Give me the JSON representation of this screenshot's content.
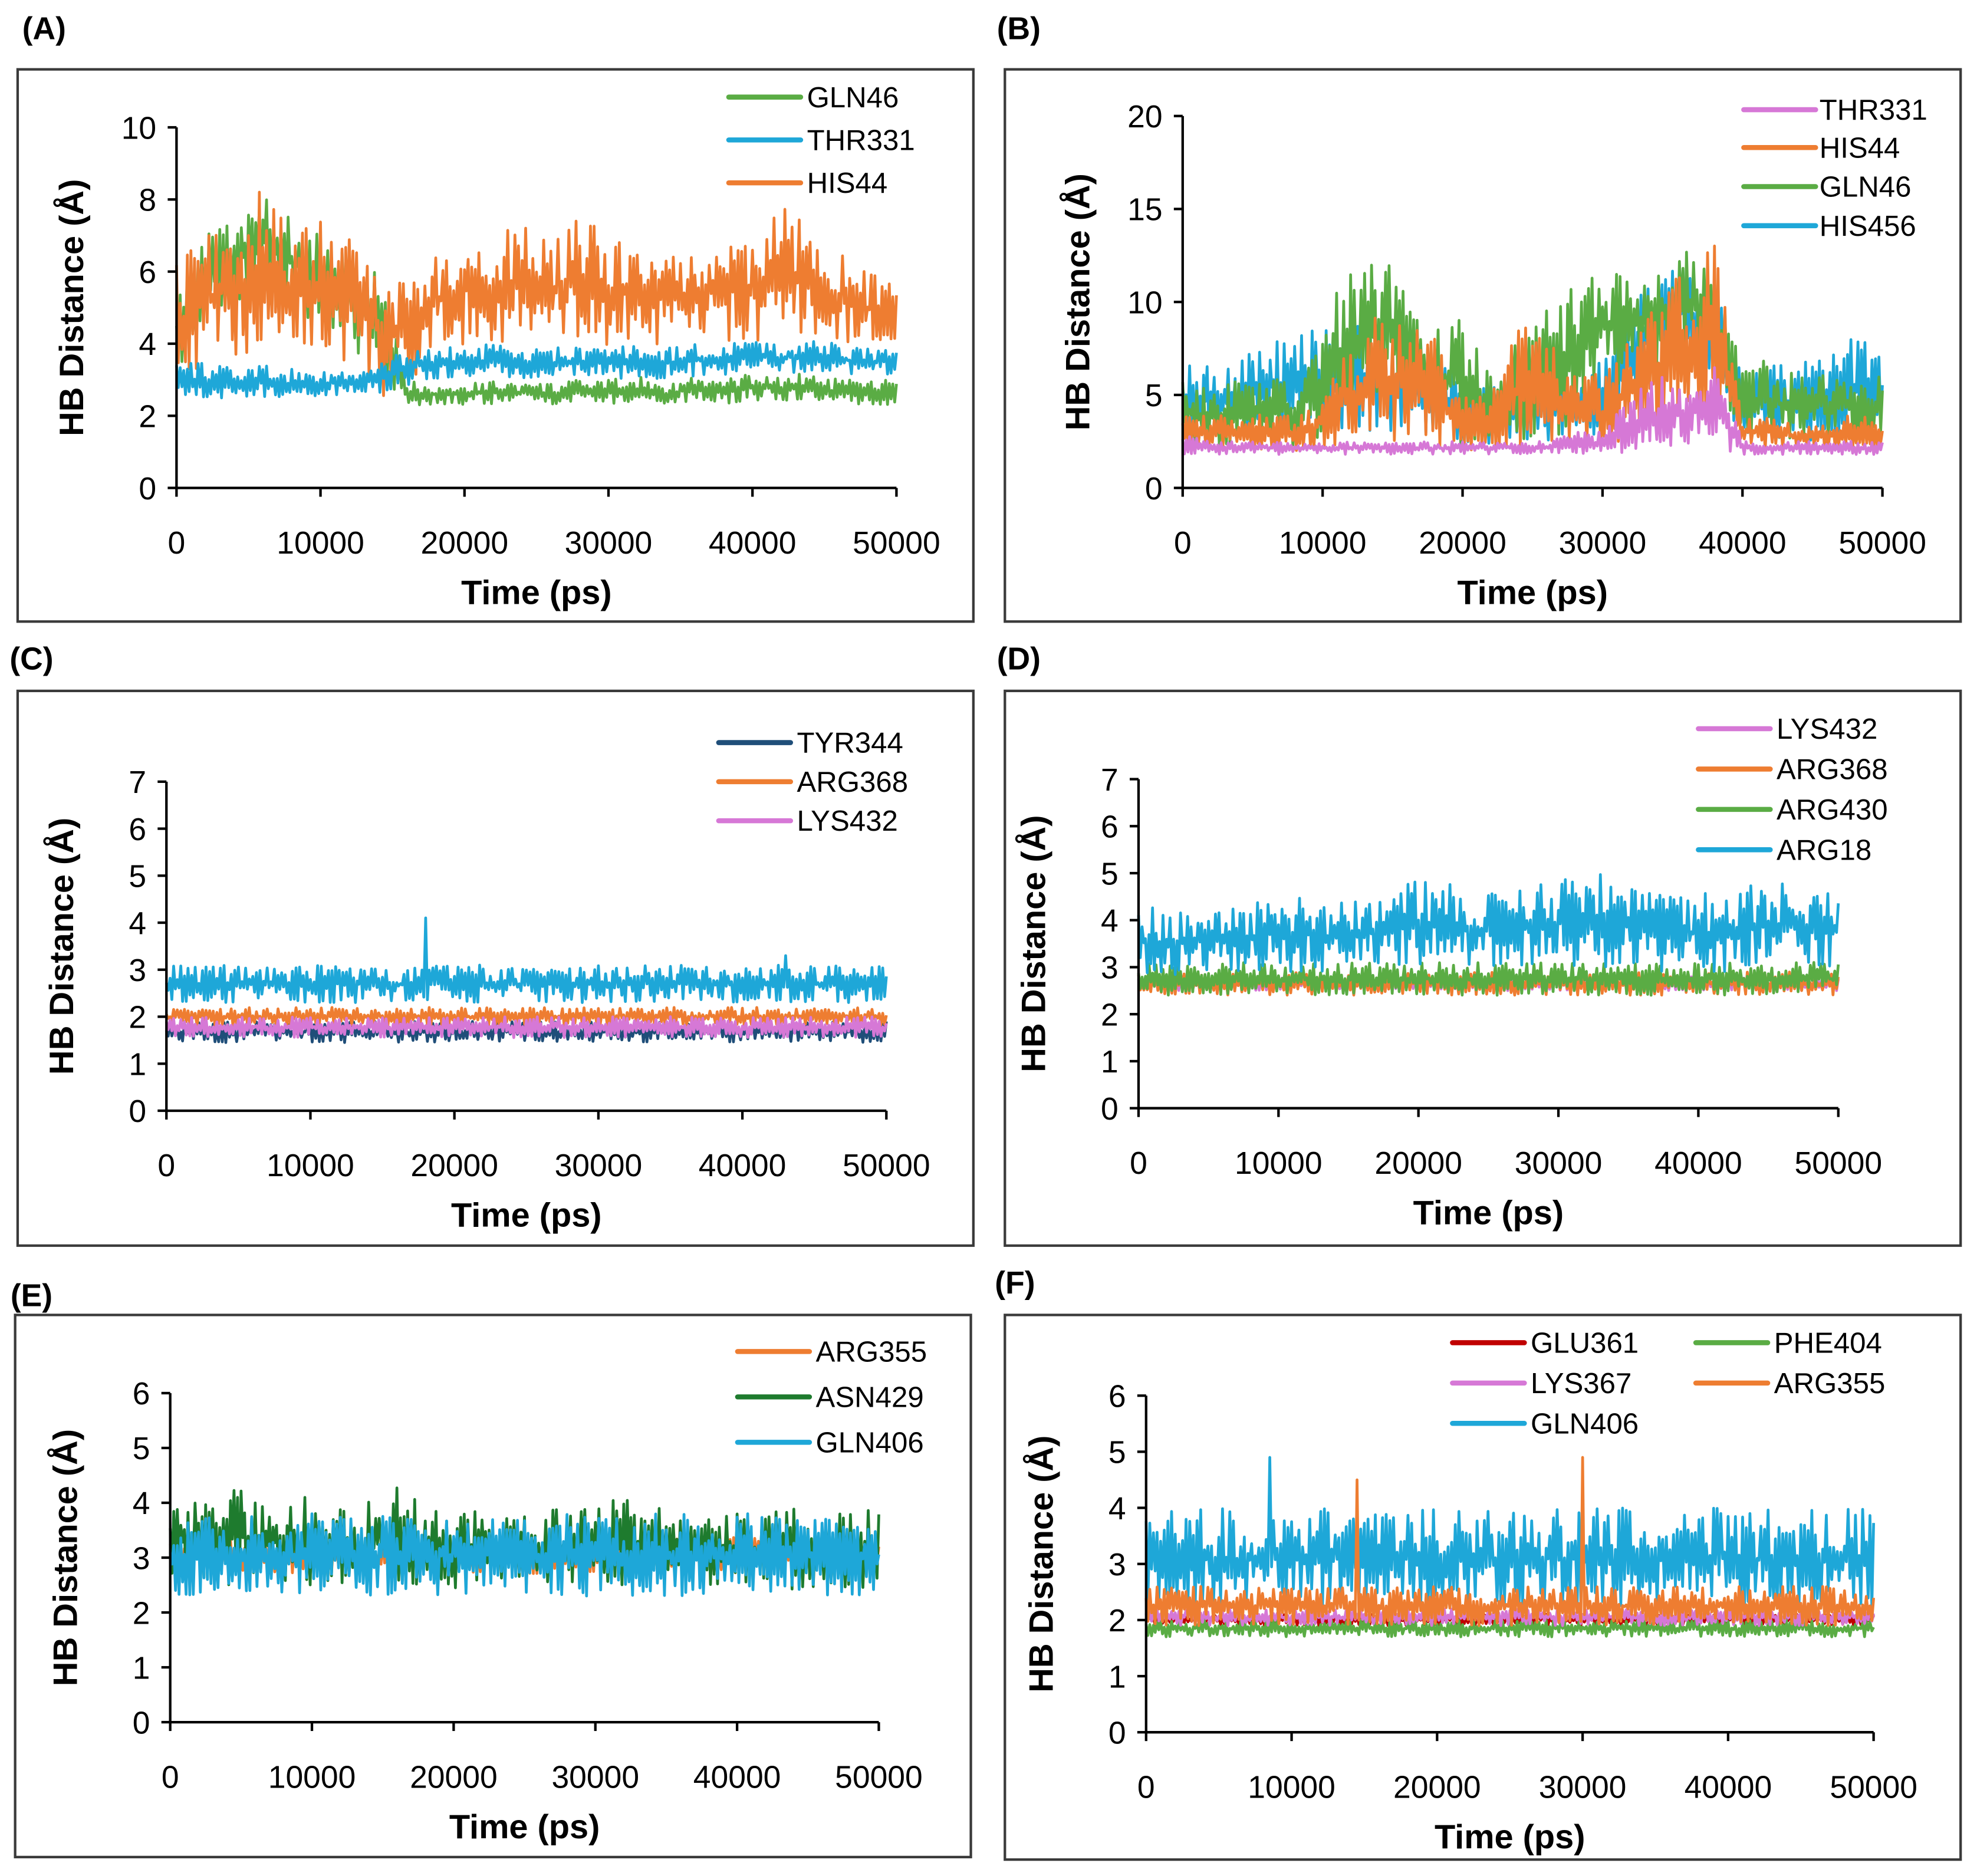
{
  "chart_data": [
    {
      "panel": "(A)",
      "type": "line",
      "xlabel": "Time (ps)",
      "ylabel": "HB Distance (Å)",
      "xlim": [
        0,
        50000
      ],
      "ylim": [
        0,
        10
      ],
      "xticks": [
        0,
        10000,
        20000,
        30000,
        40000,
        50000
      ],
      "yticks": [
        0,
        2,
        4,
        6,
        8,
        10
      ],
      "x_step": 2000,
      "legend": [
        "GLN46",
        "THR331",
        "HIS44"
      ],
      "series": [
        {
          "name": "GLN46",
          "color": "#5aac44",
          "lo": [
            2.3,
            4.5,
            5,
            5.5,
            5,
            4.5,
            4,
            3,
            2.3,
            2.3,
            2.3,
            2.3,
            2.4,
            2.3,
            2.4,
            2.3,
            2.4,
            2.3,
            2.4,
            2.3,
            2.4,
            2.4,
            2.4,
            2.3,
            2.3,
            2.2
          ],
          "hi": [
            6,
            7,
            7.5,
            8.2,
            7.5,
            7,
            6.5,
            6,
            3,
            2.9,
            2.9,
            3,
            2.9,
            2.9,
            3,
            3,
            3.1,
            2.9,
            3.1,
            3,
            3.2,
            3.1,
            3.2,
            3,
            3,
            3
          ]
        },
        {
          "name": "HIS44",
          "color": "#ee7d31",
          "lo": [
            2.5,
            3.5,
            3.5,
            4,
            4,
            3.5,
            3.5,
            2.5,
            2.3,
            3.8,
            4,
            4,
            4,
            4,
            4,
            3.8,
            4,
            3.9,
            4,
            4,
            4,
            4,
            4,
            4,
            4,
            4
          ],
          "hi": [
            6.5,
            7,
            7.5,
            8.4,
            7,
            7.5,
            7,
            6.5,
            6,
            6.5,
            7,
            6.8,
            7.5,
            6.8,
            7.6,
            7,
            6.8,
            6.5,
            6.7,
            7,
            6.8,
            7.8,
            7.5,
            6.5,
            6,
            5.8
          ]
        },
        {
          "name": "THR331",
          "color": "#1ea7d8",
          "lo": [
            2.3,
            2.5,
            2.4,
            2.5,
            2.5,
            2.5,
            2.6,
            2.6,
            2.8,
            3,
            3,
            3.1,
            3,
            3,
            3.1,
            3,
            3,
            3,
            3.1,
            3.1,
            3.2,
            3.2,
            3.2,
            3.1,
            3.1,
            3.1
          ],
          "hi": [
            3.5,
            3.5,
            3.3,
            3.4,
            3.3,
            3.3,
            3.2,
            3.4,
            3.9,
            3.9,
            3.9,
            4,
            3.8,
            3.9,
            3.9,
            3.9,
            4,
            3.9,
            4,
            4,
            4.1,
            4,
            4.1,
            4,
            3.9,
            3.9
          ]
        }
      ]
    },
    {
      "panel": "(B)",
      "type": "line",
      "xlabel": "Time (ps)",
      "ylabel": "HB Distance (Å)",
      "xlim": [
        0,
        50000
      ],
      "ylim": [
        0,
        20
      ],
      "xticks": [
        0,
        10000,
        20000,
        30000,
        40000,
        50000
      ],
      "yticks": [
        0,
        5,
        10,
        15,
        20
      ],
      "x_step": 2000,
      "legend": [
        "THR331",
        "HIS44",
        "GLN46",
        "HIS456"
      ],
      "series": [
        {
          "name": "HIS456",
          "color": "#1ea7d8",
          "lo": [
            2.5,
            3,
            3,
            3,
            3,
            3,
            3,
            3,
            3,
            2.5,
            2.2,
            2.2,
            2.5,
            2.5,
            2.5,
            2.5,
            4,
            6,
            7,
            5,
            2.5,
            2.5,
            2.5,
            2.5,
            2.5,
            2.5
          ],
          "hi": [
            7,
            7,
            7,
            8,
            8,
            9,
            9,
            9,
            8,
            7,
            6,
            6,
            6,
            6,
            6,
            7,
            11,
            12,
            12,
            12,
            6,
            6.5,
            7,
            7,
            8.5,
            7
          ]
        },
        {
          "name": "GLN46",
          "color": "#5aac44",
          "lo": [
            2.2,
            2.2,
            2.3,
            2.3,
            2.3,
            2.3,
            3,
            5,
            4,
            3,
            2.3,
            2.3,
            2.5,
            2.5,
            3,
            5,
            6,
            6,
            7,
            6,
            2.5,
            2.5,
            2.5,
            2.5,
            2.5,
            2.5
          ],
          "hi": [
            6,
            5.5,
            6,
            6,
            6,
            9,
            12,
            12.8,
            11,
            9,
            10,
            6,
            8,
            10,
            11,
            12,
            12,
            12.5,
            13,
            12,
            7,
            7,
            6,
            6.5,
            6,
            6
          ]
        },
        {
          "name": "HIS44",
          "color": "#ee7d31",
          "lo": [
            2,
            2,
            2,
            2,
            2,
            2,
            1.8,
            2,
            2,
            2,
            2,
            2,
            2,
            2,
            2,
            2,
            2.5,
            3,
            3,
            3,
            2,
            2,
            2,
            2,
            2,
            2
          ],
          "hi": [
            4,
            4,
            4,
            4,
            4,
            5,
            8,
            10,
            9,
            8,
            5,
            5,
            9,
            8,
            7,
            6,
            8,
            10,
            12,
            13.5,
            4,
            4,
            3.5,
            3.5,
            4,
            3.5
          ]
        },
        {
          "name": "THR331",
          "color": "#d678d6",
          "lo": 1.8,
          "hi": [
            3,
            2.5,
            2.5,
            2.5,
            2.5,
            2.5,
            2.5,
            2.5,
            2.5,
            2.5,
            2.5,
            2.5,
            2.5,
            2.5,
            3,
            3,
            5,
            6,
            6,
            7,
            2.5,
            2.5,
            2.5,
            2.5,
            2.5,
            2.5
          ]
        }
      ]
    },
    {
      "panel": "(C)",
      "type": "line",
      "xlabel": "Time (ps)",
      "ylabel": "HB Distance (Å)",
      "xlim": [
        0,
        50000
      ],
      "ylim": [
        0,
        7
      ],
      "xticks": [
        0,
        10000,
        20000,
        30000,
        40000,
        50000
      ],
      "yticks": [
        0,
        1,
        2,
        3,
        4,
        5,
        6,
        7
      ],
      "x_step": 2000,
      "legend": [
        "TYR344",
        "ARG368",
        "LYS432"
      ],
      "series": [
        {
          "color": "#1ea7d8",
          "lo": 2.3,
          "hi": 3.1,
          "peaks": [
            [
              18000,
              4.1
            ],
            [
              43000,
              3.3
            ]
          ]
        },
        {
          "name": "TYR344",
          "color": "#1f4e79",
          "lo": 1.45,
          "hi": 1.9
        },
        {
          "name": "ARG368",
          "color": "#ee7d31",
          "lo": 1.8,
          "hi": 2.2
        },
        {
          "name": "LYS432",
          "color": "#d678d6",
          "lo": 1.55,
          "hi": 2.0
        }
      ]
    },
    {
      "panel": "(D)",
      "type": "line",
      "xlabel": "Time (ps)",
      "ylabel": "HB Distance (Å)",
      "xlim": [
        0,
        50000
      ],
      "ylim": [
        0,
        7
      ],
      "xticks": [
        0,
        10000,
        20000,
        30000,
        40000,
        50000
      ],
      "yticks": [
        0,
        1,
        2,
        3,
        4,
        5,
        6,
        7
      ],
      "x_step": 2000,
      "legend": [
        "LYS432",
        "ARG368",
        "ARG430",
        "ARG18"
      ],
      "series": [
        {
          "name": "LYS432",
          "color": "#d678d6",
          "lo": 2.5,
          "hi": 2.8
        },
        {
          "name": "ARG368",
          "color": "#ee7d31",
          "lo": 2.4,
          "hi": 2.9
        },
        {
          "name": "ARG430",
          "color": "#5aac44",
          "lo": 2.4,
          "hi": 3.1
        },
        {
          "name": "ARG18",
          "color": "#1ea7d8",
          "lo": [
            2.8,
            2.8,
            2.9,
            2.9,
            2.9,
            2.9,
            2.9,
            2.9,
            3,
            3,
            3,
            3,
            3,
            3,
            3,
            3,
            3,
            2.9,
            2.9,
            2.9,
            2.9,
            2.9,
            3,
            3,
            3,
            3
          ],
          "hi": [
            4.4,
            4.2,
            4.2,
            4.3,
            4.3,
            4.6,
            4.5,
            4.4,
            4.4,
            4.6,
            4.9,
            4.8,
            4.6,
            4.8,
            4.7,
            4.9,
            5.1,
            5,
            4.6,
            4.5,
            4.6,
            4.5,
            4.8,
            4.8,
            4.6,
            4.6
          ]
        }
      ]
    },
    {
      "panel": "(E)",
      "type": "line",
      "xlabel": "Time (ps)",
      "ylabel": "HB Distance (Å)",
      "xlim": [
        0,
        50000
      ],
      "ylim": [
        0,
        6
      ],
      "xticks": [
        0,
        10000,
        20000,
        30000,
        40000,
        50000
      ],
      "yticks": [
        0,
        1,
        2,
        3,
        4,
        5,
        6
      ],
      "x_step": 2000,
      "legend": [
        "ARG355",
        "ASN429",
        "GLN406"
      ],
      "series": [
        {
          "name": "ARG355",
          "color": "#ee7d31",
          "lo": 2.7,
          "hi": 3.4
        },
        {
          "name": "ASN429",
          "color": "#1e7b2e",
          "lo": [
            2.3,
            2.6,
            2.5,
            2.5,
            2.5,
            2.5,
            2.5,
            2.5,
            2.4,
            2.4,
            2.4,
            2.5,
            2.3,
            2.5,
            2.5,
            2.5,
            2.5,
            2.5,
            2.4,
            2.5,
            2.5,
            2.4,
            2.4,
            2.4,
            2.4,
            2.4
          ],
          "hi": [
            4.1,
            4.2,
            4.3,
            4.2,
            4.1,
            4.1,
            4,
            4.1,
            4.5,
            4,
            3.9,
            3.9,
            3.8,
            3.9,
            3.9,
            4,
            4.1,
            3.9,
            3.9,
            3.8,
            3.9,
            3.8,
            4.1,
            3.8,
            3.9,
            4
          ]
        },
        {
          "name": "GLN406",
          "color": "#1ea7d8",
          "lo": 2.3,
          "hi": 3.8
        }
      ]
    },
    {
      "panel": "(F)",
      "type": "line",
      "xlabel": "Time (ps)",
      "ylabel": "HB Distance (Å)",
      "xlim": [
        0,
        50000
      ],
      "ylim": [
        0,
        6
      ],
      "xticks": [
        0,
        10000,
        20000,
        30000,
        40000,
        50000
      ],
      "yticks": [
        0,
        1,
        2,
        3,
        4,
        5,
        6
      ],
      "x_step": 2000,
      "legend": [
        "GLU361",
        "PHE404",
        "LYS367",
        "ARG355",
        "GLN406"
      ],
      "series": [
        {
          "name": "GLN406",
          "color": "#1ea7d8",
          "lo": 2.2,
          "hi": 4.0,
          "peaks": [
            [
              8500,
              4.9
            ]
          ]
        },
        {
          "name": "GLU361",
          "color": "#c00000",
          "lo": 1.9,
          "hi": 2.1
        },
        {
          "name": "PHE404",
          "color": "#5aac44",
          "lo": 1.7,
          "hi": 2.0
        },
        {
          "name": "LYS367",
          "color": "#d678d6",
          "lo": 1.9,
          "hi": 2.2
        },
        {
          "name": "ARG355",
          "color": "#ee7d31",
          "lo": 1.9,
          "hi": 2.6,
          "peaks": [
            [
              14500,
              4.5
            ],
            [
              30000,
              4.9
            ]
          ]
        }
      ]
    }
  ]
}
